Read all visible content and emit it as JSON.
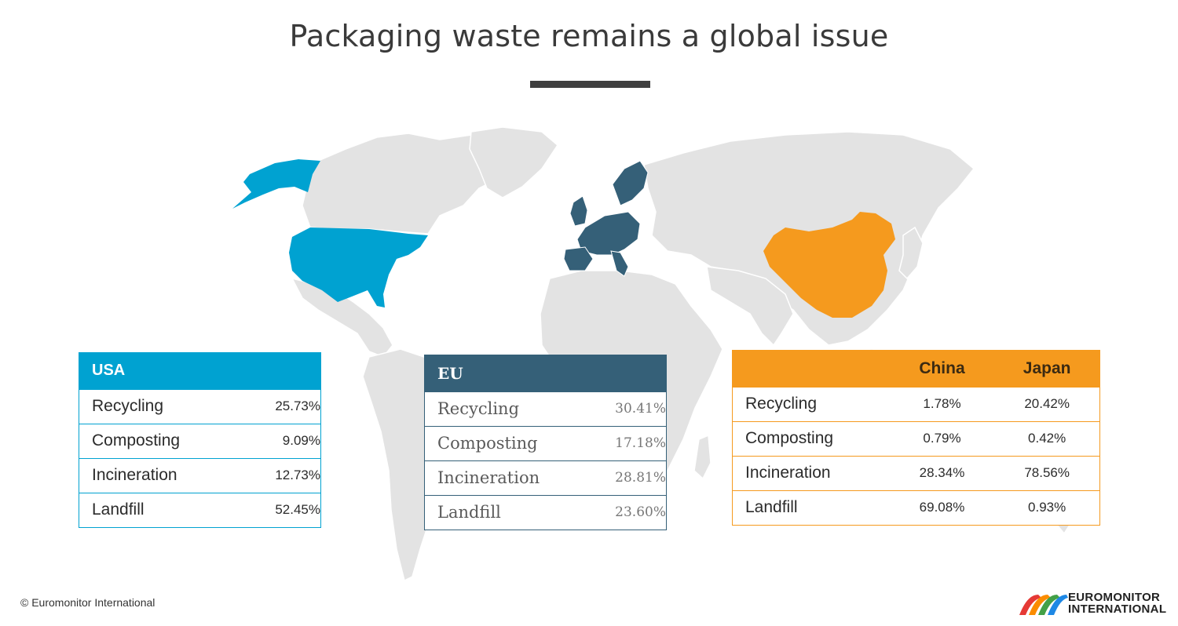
{
  "title": "Packaging waste remains a global issue",
  "colors": {
    "usa": "#00a2d1",
    "eu": "#356078",
    "china": "#f59a1e",
    "land": "#e3e3e3"
  },
  "usa": {
    "header": "USA",
    "rows": [
      {
        "label": "Recycling",
        "value": "25.73%"
      },
      {
        "label": "Composting",
        "value": "9.09%"
      },
      {
        "label": "Incineration",
        "value": "12.73%"
      },
      {
        "label": "Landfill",
        "value": "52.45%"
      }
    ]
  },
  "eu": {
    "header": "EU",
    "rows": [
      {
        "label": "Recycling",
        "value": "30.41%"
      },
      {
        "label": "Composting",
        "value": "17.18%"
      },
      {
        "label": "Incineration",
        "value": "28.81%"
      },
      {
        "label": "Landfill",
        "value": "23.60%"
      }
    ]
  },
  "asia": {
    "columns": [
      "China",
      "Japan"
    ],
    "rows": [
      {
        "label": "Recycling",
        "china": "1.78%",
        "japan": "20.42%"
      },
      {
        "label": "Composting",
        "china": "0.79%",
        "japan": "0.42%"
      },
      {
        "label": "Incineration",
        "china": "28.34%",
        "japan": "78.56%"
      },
      {
        "label": "Landfill",
        "china": "69.08%",
        "japan": "0.93%"
      }
    ]
  },
  "footer": {
    "copyright": "© Euromonitor International",
    "logo_line1": "EUROMONITOR",
    "logo_line2": "INTERNATIONAL"
  }
}
